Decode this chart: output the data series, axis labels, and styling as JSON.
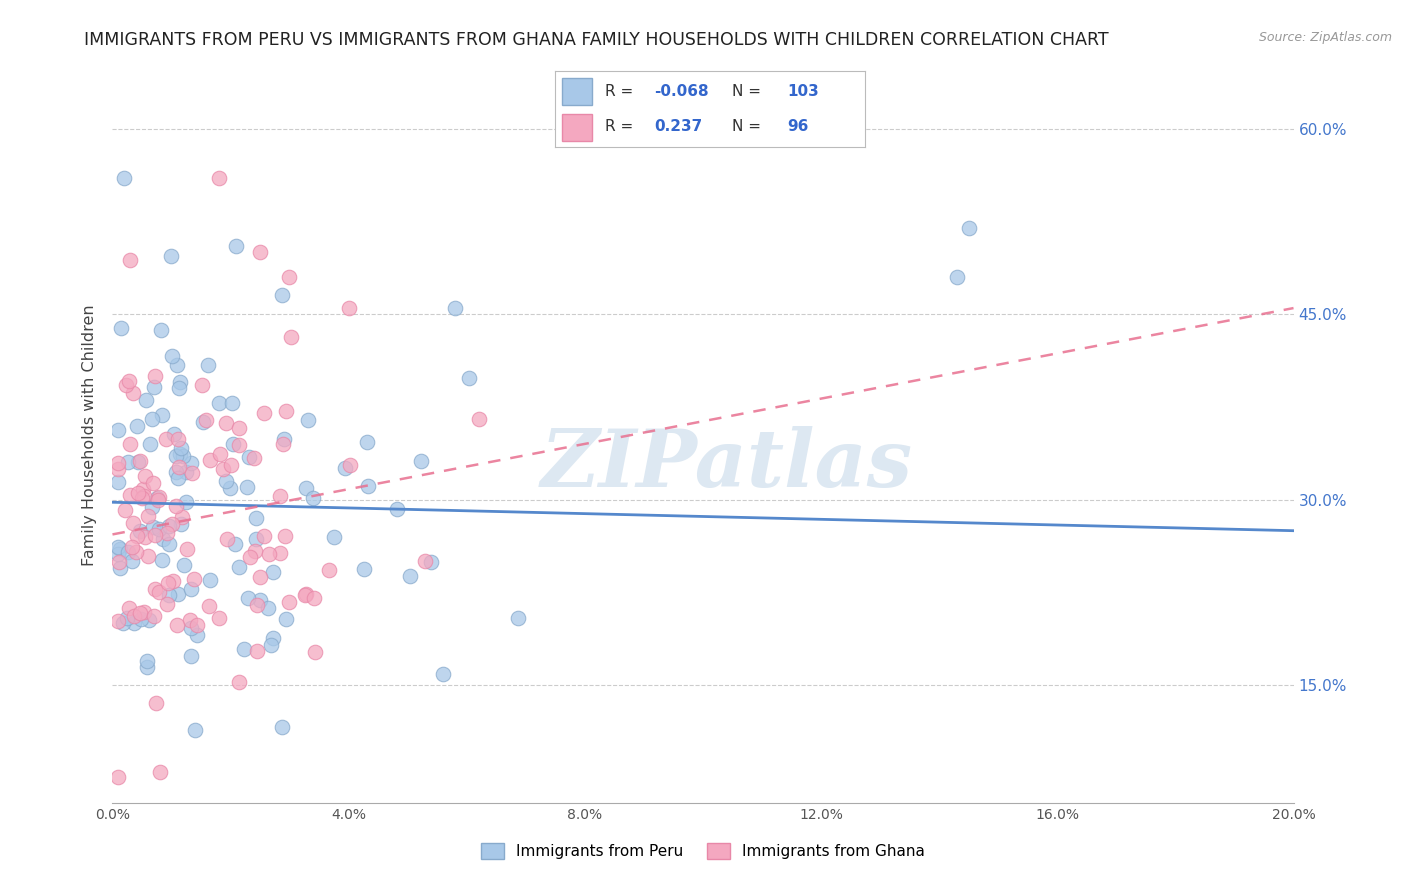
{
  "title": "IMMIGRANTS FROM PERU VS IMMIGRANTS FROM GHANA FAMILY HOUSEHOLDS WITH CHILDREN CORRELATION CHART",
  "source": "Source: ZipAtlas.com",
  "ylabel": "Family Households with Children",
  "legend_label1": "Immigrants from Peru",
  "legend_label2": "Immigrants from Ghana",
  "R1": -0.068,
  "N1": 103,
  "R2": 0.237,
  "N2": 96,
  "color_peru": "#a8c8e8",
  "color_ghana": "#f4a8c0",
  "color_peru_edge": "#88aacc",
  "color_ghana_edge": "#e888a8",
  "trend_color_peru": "#5588cc",
  "trend_color_ghana": "#e87090",
  "xlim": [
    0.0,
    0.2
  ],
  "ylim": [
    0.055,
    0.65
  ],
  "yticks": [
    0.15,
    0.3,
    0.45,
    0.6
  ],
  "xticks": [
    0.0,
    0.04,
    0.08,
    0.12,
    0.16,
    0.2
  ],
  "watermark": "ZIPatlas",
  "background_color": "#ffffff",
  "seed_peru": 7,
  "seed_ghana": 21
}
